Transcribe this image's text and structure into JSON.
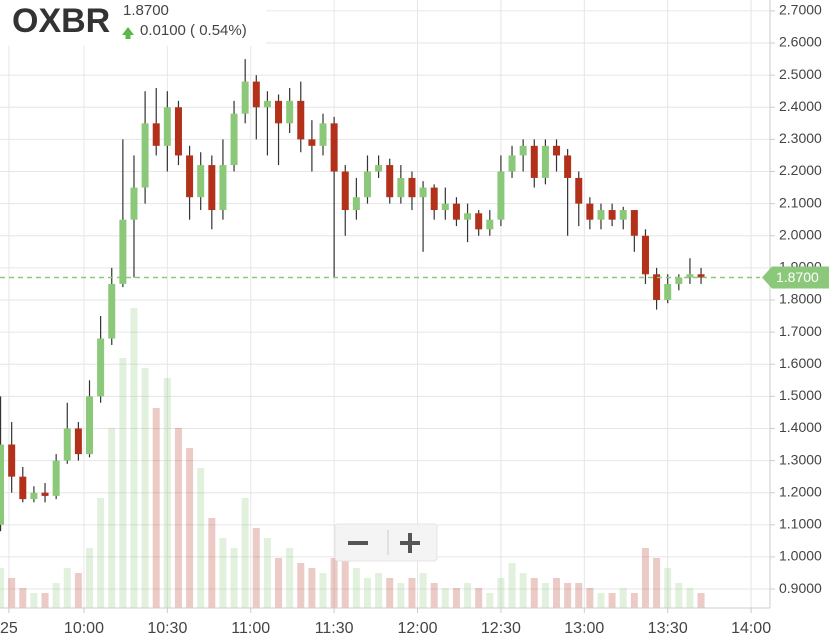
{
  "header": {
    "symbol": "OXBR",
    "price": "1.8700",
    "change": "0.0100 ( 0.54%)"
  },
  "chart_data": {
    "type": "candlestick",
    "x": [
      570,
      574,
      578,
      582,
      586,
      590,
      594,
      598,
      602,
      606,
      610,
      614,
      618,
      622,
      626,
      630,
      634,
      638,
      642,
      646,
      650,
      654,
      658,
      662,
      666,
      670,
      674,
      678,
      682,
      686,
      690,
      694,
      698,
      702,
      706,
      710,
      714,
      718,
      722,
      726,
      730,
      734,
      738,
      742,
      746,
      750,
      754,
      758,
      762,
      766,
      770,
      774,
      778,
      782,
      786,
      790,
      794,
      798,
      802,
      806,
      810,
      814,
      818,
      822
    ],
    "open": [
      1.1,
      1.35,
      1.25,
      1.18,
      1.2,
      1.19,
      1.3,
      1.4,
      1.32,
      1.5,
      1.68,
      1.85,
      2.05,
      2.15,
      2.35,
      2.28,
      2.4,
      2.25,
      2.12,
      2.22,
      2.08,
      2.22,
      2.38,
      2.48,
      2.4,
      2.42,
      2.35,
      2.42,
      2.3,
      2.28,
      2.35,
      2.2,
      2.08,
      2.12,
      2.2,
      2.22,
      2.12,
      2.18,
      2.12,
      2.15,
      2.08,
      2.1,
      2.05,
      2.07,
      2.02,
      2.05,
      2.2,
      2.25,
      2.28,
      2.18,
      2.28,
      2.25,
      2.18,
      2.1,
      2.05,
      2.08,
      2.05,
      2.08,
      2.0,
      1.88,
      1.8,
      1.85,
      1.87,
      1.88
    ],
    "high": [
      1.5,
      1.42,
      1.28,
      1.22,
      1.23,
      1.32,
      1.48,
      1.42,
      1.55,
      1.75,
      1.9,
      2.3,
      2.25,
      2.45,
      2.46,
      2.45,
      2.42,
      2.28,
      2.26,
      2.25,
      2.3,
      2.42,
      2.55,
      2.5,
      2.45,
      2.44,
      2.46,
      2.48,
      2.36,
      2.38,
      2.37,
      2.22,
      2.18,
      2.25,
      2.25,
      2.24,
      2.22,
      2.2,
      2.17,
      2.16,
      2.15,
      2.12,
      2.1,
      2.08,
      2.08,
      2.25,
      2.28,
      2.3,
      2.3,
      2.3,
      2.3,
      2.27,
      2.2,
      2.12,
      2.1,
      2.1,
      2.09,
      2.08,
      2.02,
      1.9,
      1.88,
      1.88,
      1.93,
      1.9
    ],
    "low": [
      1.08,
      1.2,
      1.17,
      1.17,
      1.17,
      1.18,
      1.29,
      1.3,
      1.31,
      1.48,
      1.66,
      1.84,
      1.87,
      2.1,
      2.25,
      2.2,
      2.22,
      2.05,
      2.08,
      2.02,
      2.05,
      2.2,
      2.35,
      2.3,
      2.25,
      2.22,
      2.32,
      2.26,
      2.2,
      2.25,
      1.87,
      2.0,
      2.05,
      2.1,
      2.18,
      2.1,
      2.1,
      2.08,
      1.95,
      2.05,
      2.05,
      2.03,
      1.98,
      2.0,
      2.0,
      2.03,
      2.18,
      2.2,
      2.15,
      2.16,
      2.2,
      2.0,
      2.03,
      2.02,
      2.02,
      2.03,
      2.02,
      1.95,
      1.85,
      1.77,
      1.79,
      1.83,
      1.85,
      1.85
    ],
    "close": [
      1.35,
      1.25,
      1.18,
      1.2,
      1.19,
      1.3,
      1.4,
      1.32,
      1.5,
      1.68,
      1.85,
      2.05,
      2.15,
      2.35,
      2.28,
      2.4,
      2.25,
      2.12,
      2.22,
      2.08,
      2.22,
      2.38,
      2.48,
      2.4,
      2.42,
      2.35,
      2.42,
      2.3,
      2.28,
      2.35,
      2.2,
      2.08,
      2.12,
      2.2,
      2.22,
      2.12,
      2.18,
      2.12,
      2.15,
      2.08,
      2.1,
      2.05,
      2.07,
      2.02,
      2.05,
      2.2,
      2.25,
      2.28,
      2.18,
      2.28,
      2.25,
      2.18,
      2.1,
      2.05,
      2.08,
      2.05,
      2.08,
      2.0,
      1.88,
      1.8,
      1.85,
      1.87,
      1.88,
      1.87
    ],
    "volume": [
      40,
      30,
      20,
      15,
      15,
      25,
      40,
      35,
      60,
      110,
      180,
      250,
      300,
      240,
      200,
      230,
      180,
      160,
      140,
      90,
      70,
      60,
      110,
      80,
      70,
      50,
      60,
      45,
      40,
      35,
      50,
      60,
      40,
      30,
      35,
      30,
      25,
      30,
      35,
      25,
      20,
      20,
      25,
      20,
      15,
      30,
      45,
      35,
      30,
      25,
      30,
      25,
      25,
      20,
      15,
      15,
      20,
      15,
      60,
      50,
      40,
      25,
      20,
      15
    ],
    "up_color": "#8cc87a",
    "down_color": "#b3311a",
    "last": {
      "value": 1.87,
      "label": "1.8700"
    },
    "ylim": [
      0.841,
      2.734
    ],
    "yticks": [
      {
        "value": 0.9,
        "label": "0.9000"
      },
      {
        "value": 1.0,
        "label": "1.0000"
      },
      {
        "value": 1.1,
        "label": "1.1000"
      },
      {
        "value": 1.2,
        "label": "1.2000"
      },
      {
        "value": 1.3,
        "label": "1.3000"
      },
      {
        "value": 1.4,
        "label": "1.4000"
      },
      {
        "value": 1.5,
        "label": "1.5000"
      },
      {
        "value": 1.6,
        "label": "1.6000"
      },
      {
        "value": 1.7,
        "label": "1.7000"
      },
      {
        "value": 1.8,
        "label": "1.8000"
      },
      {
        "value": 1.9,
        "label": "1.9000"
      },
      {
        "value": 2.0,
        "label": "2.0000"
      },
      {
        "value": 2.1,
        "label": "2.1000"
      },
      {
        "value": 2.2,
        "label": "2.2000"
      },
      {
        "value": 2.3,
        "label": "2.3000"
      },
      {
        "value": 2.4,
        "label": "2.4000"
      },
      {
        "value": 2.5,
        "label": "2.5000"
      },
      {
        "value": 2.6,
        "label": "2.6000"
      },
      {
        "value": 2.7,
        "label": "2.7000"
      }
    ],
    "xlim": [
      569.8,
      846.8
    ],
    "xticks": [
      {
        "value": 573,
        "label": "25"
      },
      {
        "value": 600,
        "label": "10:00"
      },
      {
        "value": 630,
        "label": "10:30"
      },
      {
        "value": 660,
        "label": "11:00"
      },
      {
        "value": 690,
        "label": "11:30"
      },
      {
        "value": 720,
        "label": "12:00"
      },
      {
        "value": 750,
        "label": "12:30"
      },
      {
        "value": 780,
        "label": "13:00"
      },
      {
        "value": 810,
        "label": "13:30"
      },
      {
        "value": 840,
        "label": "14:00"
      }
    ],
    "grid": true
  }
}
